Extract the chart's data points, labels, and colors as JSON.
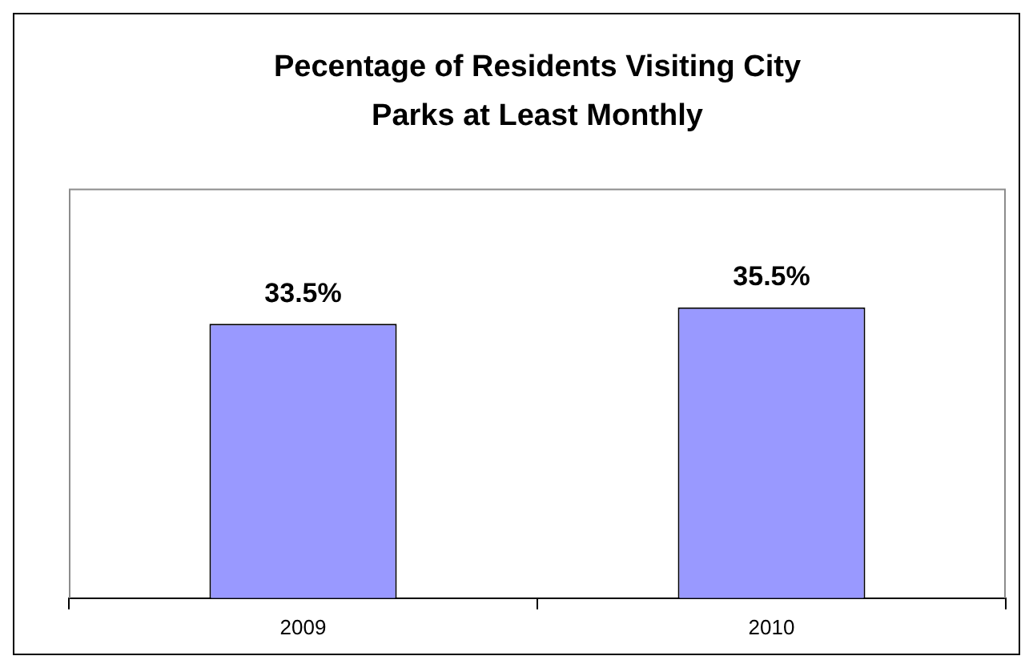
{
  "chart_data": {
    "type": "bar",
    "title": "Pecentage of Residents Visiting City Parks at Least Monthly",
    "categories": [
      "2009",
      "2010"
    ],
    "series": [
      {
        "color": "#9999ff",
        "values": [
          33.5,
          35.5
        ],
        "value_labels": [
          "33.5%",
          "35.5%"
        ]
      }
    ],
    "tick_labels": "x",
    "grid": false
  }
}
